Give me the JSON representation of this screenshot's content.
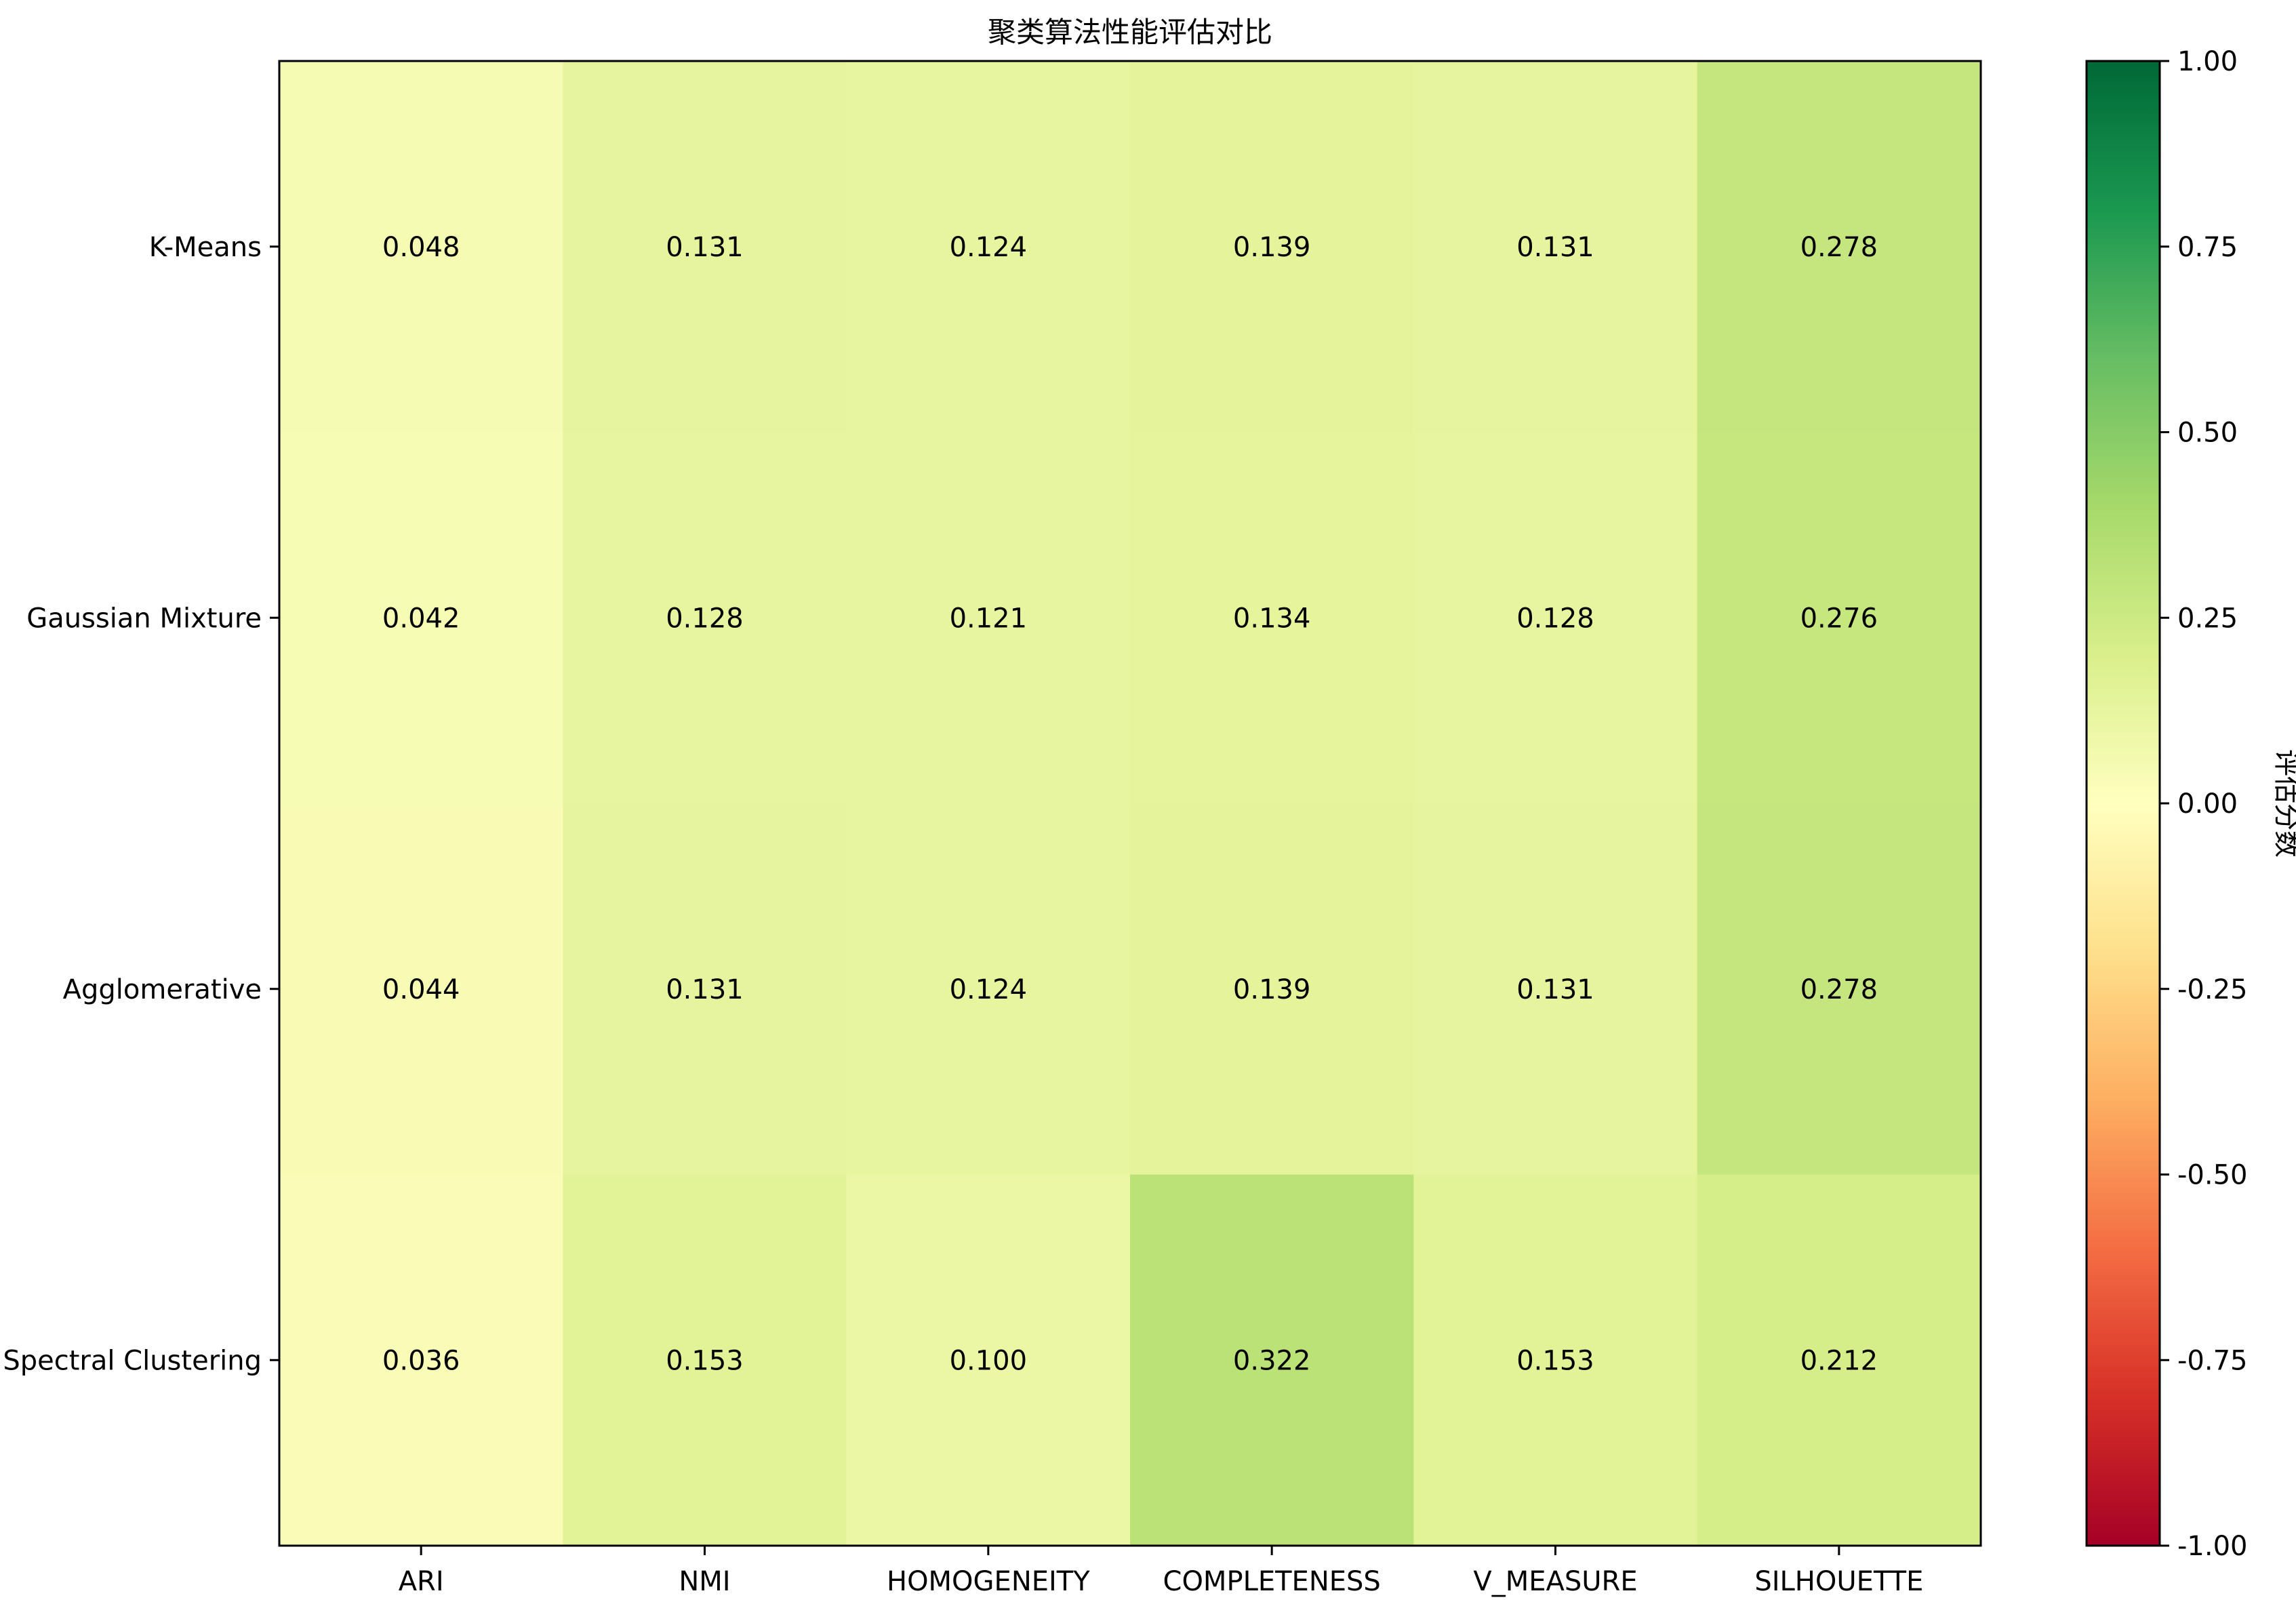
{
  "chart_data": {
    "type": "heatmap",
    "title": "聚类算法性能评估对比",
    "rows": [
      "K-Means",
      "Gaussian Mixture",
      "Agglomerative",
      "Spectral Clustering"
    ],
    "columns": [
      "ARI",
      "NMI",
      "HOMOGENEITY",
      "COMPLETENESS",
      "V_MEASURE",
      "SILHOUETTE"
    ],
    "values": [
      [
        0.048,
        0.131,
        0.124,
        0.139,
        0.131,
        0.278
      ],
      [
        0.042,
        0.128,
        0.121,
        0.134,
        0.128,
        0.276
      ],
      [
        0.044,
        0.131,
        0.124,
        0.139,
        0.131,
        0.278
      ],
      [
        0.036,
        0.153,
        0.1,
        0.322,
        0.153,
        0.212
      ]
    ],
    "value_format": "0.000",
    "colormap": "RdYlGn",
    "vmin": -1.0,
    "vmax": 1.0,
    "colorbar": {
      "label": "评估分数",
      "ticks": [
        "1.00",
        "0.75",
        "0.50",
        "0.25",
        "0.00",
        "-0.25",
        "-0.50",
        "-0.75",
        "-1.00"
      ],
      "tick_values": [
        1.0,
        0.75,
        0.5,
        0.25,
        0.0,
        -0.25,
        -0.5,
        -0.75,
        -1.0
      ]
    }
  }
}
